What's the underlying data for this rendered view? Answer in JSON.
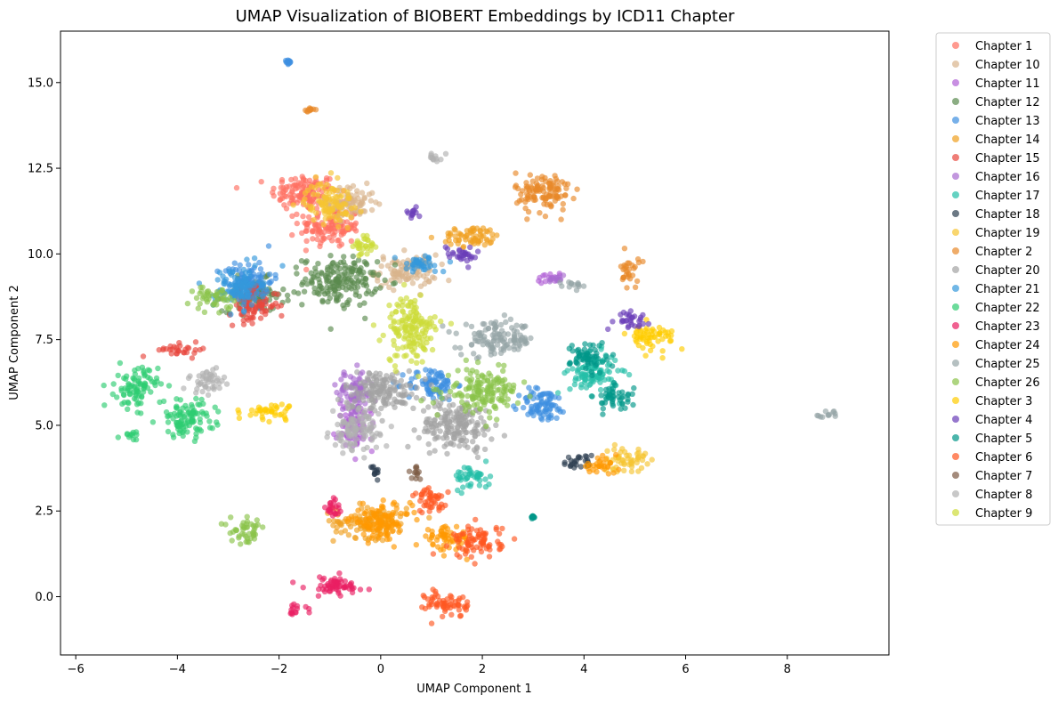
{
  "chart_data": {
    "type": "scatter",
    "title": "UMAP Visualization of BIOBERT Embeddings by ICD11 Chapter",
    "xlabel": "UMAP Component 1",
    "ylabel": "UMAP Component 2",
    "xlim": [
      -6.3,
      10.0
    ],
    "ylim": [
      -1.7,
      16.5
    ],
    "xticks": [
      -6,
      -4,
      -2,
      0,
      2,
      4,
      6,
      8
    ],
    "yticks": [
      0.0,
      2.5,
      5.0,
      7.5,
      10.0,
      12.5,
      15.0
    ],
    "grid": false,
    "legend_position": "outside-right",
    "series": [
      {
        "name": "Chapter 1",
        "color": "#ff6f61",
        "clusters": [
          [
            -1.5,
            11.8,
            0.55,
            0.45
          ],
          [
            -1.0,
            10.8,
            0.5,
            0.5
          ]
        ]
      },
      {
        "name": "Chapter 10",
        "color": "#d9b38c",
        "clusters": [
          [
            -0.6,
            11.5,
            0.4,
            0.4
          ],
          [
            0.5,
            9.5,
            0.5,
            0.4
          ]
        ]
      },
      {
        "name": "Chapter 11",
        "color": "#b15fd6",
        "clusters": [
          [
            3.3,
            9.3,
            0.25,
            0.1
          ],
          [
            -0.5,
            5.0,
            0.3,
            0.6
          ]
        ]
      },
      {
        "name": "Chapter 12",
        "color": "#5a8a4f",
        "clusters": [
          [
            -0.8,
            9.2,
            0.6,
            0.6
          ],
          [
            -2.5,
            8.8,
            0.5,
            0.4
          ]
        ]
      },
      {
        "name": "Chapter 13",
        "color": "#3d8fe0",
        "clusters": [
          [
            -2.6,
            9.2,
            0.4,
            0.5
          ],
          [
            -1.8,
            15.6,
            0.05,
            0.05
          ],
          [
            1.0,
            6.2,
            0.4,
            0.4
          ],
          [
            3.2,
            5.6,
            0.4,
            0.4
          ]
        ]
      },
      {
        "name": "Chapter 14",
        "color": "#f0a020",
        "clusters": [
          [
            1.8,
            10.5,
            0.5,
            0.25
          ],
          [
            -0.2,
            2.2,
            0.6,
            0.4
          ]
        ]
      },
      {
        "name": "Chapter 15",
        "color": "#e8473d",
        "clusters": [
          [
            -3.9,
            7.2,
            0.4,
            0.15
          ],
          [
            -2.5,
            8.5,
            0.4,
            0.4
          ]
        ]
      },
      {
        "name": "Chapter 16",
        "color": "#a86bd0",
        "clusters": [
          [
            -0.5,
            6.0,
            0.3,
            0.5
          ],
          [
            3.4,
            9.3,
            0.2,
            0.1
          ]
        ]
      },
      {
        "name": "Chapter 17",
        "color": "#23bfa8",
        "clusters": [
          [
            4.2,
            6.5,
            0.4,
            0.5
          ],
          [
            1.8,
            3.5,
            0.3,
            0.3
          ]
        ]
      },
      {
        "name": "Chapter 18",
        "color": "#2c3e50",
        "clusters": [
          [
            3.9,
            3.9,
            0.25,
            0.2
          ],
          [
            -0.1,
            3.7,
            0.1,
            0.2
          ]
        ]
      },
      {
        "name": "Chapter 19",
        "color": "#f6c531",
        "clusters": [
          [
            4.8,
            4.0,
            0.35,
            0.3
          ],
          [
            -1.0,
            11.5,
            0.4,
            0.5
          ]
        ]
      },
      {
        "name": "Chapter 2",
        "color": "#e8892a",
        "clusters": [
          [
            3.2,
            11.8,
            0.45,
            0.5
          ],
          [
            -1.4,
            14.2,
            0.08,
            0.05
          ],
          [
            4.9,
            9.5,
            0.15,
            0.4
          ]
        ]
      },
      {
        "name": "Chapter 20",
        "color": "#a3a3a3",
        "clusters": [
          [
            0.0,
            6.0,
            0.6,
            0.5
          ],
          [
            1.5,
            5.0,
            0.6,
            0.6
          ]
        ]
      },
      {
        "name": "Chapter 21",
        "color": "#3498db",
        "clusters": [
          [
            -2.8,
            9.0,
            0.4,
            0.5
          ],
          [
            0.8,
            9.7,
            0.4,
            0.2
          ]
        ]
      },
      {
        "name": "Chapter 22",
        "color": "#2ecc71",
        "clusters": [
          [
            -4.8,
            6.1,
            0.35,
            0.5
          ],
          [
            -3.8,
            5.2,
            0.45,
            0.45
          ],
          [
            -4.9,
            4.7,
            0.2,
            0.1
          ]
        ]
      },
      {
        "name": "Chapter 23",
        "color": "#e91e63",
        "clusters": [
          [
            -0.9,
            0.3,
            0.5,
            0.25
          ],
          [
            -1.7,
            -0.4,
            0.2,
            0.15
          ],
          [
            -0.9,
            2.6,
            0.15,
            0.3
          ]
        ]
      },
      {
        "name": "Chapter 24",
        "color": "#ff9800",
        "clusters": [
          [
            0.0,
            2.2,
            0.5,
            0.4
          ],
          [
            4.3,
            3.8,
            0.3,
            0.2
          ],
          [
            1.3,
            1.7,
            0.4,
            0.3
          ]
        ]
      },
      {
        "name": "Chapter 25",
        "color": "#95a5a6",
        "clusters": [
          [
            2.3,
            7.5,
            0.6,
            0.4
          ],
          [
            3.8,
            9.1,
            0.25,
            0.1
          ],
          [
            8.8,
            5.3,
            0.2,
            0.1
          ]
        ]
      },
      {
        "name": "Chapter 26",
        "color": "#8bc34a",
        "clusters": [
          [
            -2.6,
            1.9,
            0.3,
            0.3
          ],
          [
            2.0,
            6.0,
            0.6,
            0.5
          ],
          [
            -3.3,
            8.7,
            0.3,
            0.3
          ]
        ]
      },
      {
        "name": "Chapter 3",
        "color": "#ffcc00",
        "clusters": [
          [
            5.3,
            7.6,
            0.4,
            0.3
          ],
          [
            -2.2,
            5.4,
            0.4,
            0.2
          ]
        ]
      },
      {
        "name": "Chapter 4",
        "color": "#6a3db8",
        "clusters": [
          [
            4.9,
            8.1,
            0.3,
            0.2
          ],
          [
            0.6,
            11.2,
            0.15,
            0.15
          ],
          [
            1.6,
            10.0,
            0.3,
            0.2
          ]
        ]
      },
      {
        "name": "Chapter 5",
        "color": "#009688",
        "clusters": [
          [
            4.1,
            7.0,
            0.3,
            0.4
          ],
          [
            4.6,
            5.8,
            0.3,
            0.3
          ],
          [
            3.0,
            2.3,
            0.05,
            0.05
          ]
        ]
      },
      {
        "name": "Chapter 6",
        "color": "#ff5722",
        "clusters": [
          [
            1.3,
            -0.2,
            0.35,
            0.35
          ],
          [
            1.9,
            1.6,
            0.4,
            0.4
          ],
          [
            1.0,
            2.8,
            0.3,
            0.3
          ]
        ]
      },
      {
        "name": "Chapter 7",
        "color": "#7d5a44",
        "clusters": [
          [
            0.7,
            3.6,
            0.15,
            0.15
          ]
        ]
      },
      {
        "name": "Chapter 8",
        "color": "#b0b0b0",
        "clusters": [
          [
            -3.4,
            6.3,
            0.3,
            0.3
          ],
          [
            1.1,
            12.8,
            0.15,
            0.15
          ],
          [
            -0.5,
            4.8,
            0.4,
            0.5
          ]
        ]
      },
      {
        "name": "Chapter 9",
        "color": "#cddc39",
        "clusters": [
          [
            0.6,
            7.8,
            0.4,
            0.8
          ],
          [
            -0.3,
            10.2,
            0.2,
            0.3
          ]
        ]
      }
    ]
  }
}
